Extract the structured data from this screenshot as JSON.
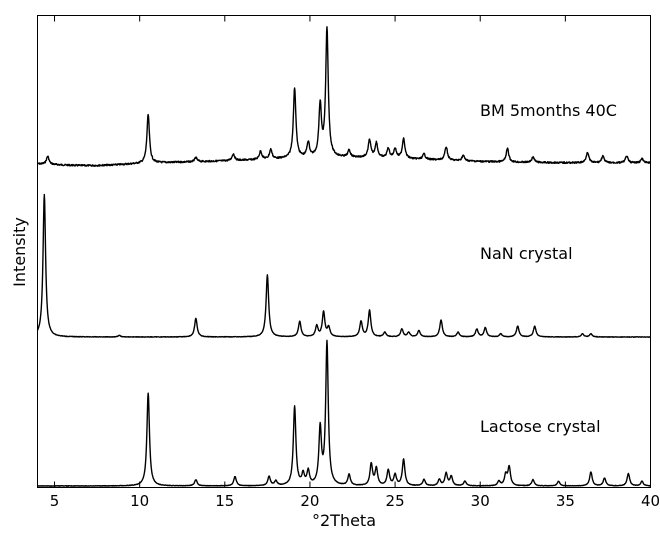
{
  "chart_data": {
    "type": "line",
    "title": "",
    "xlabel": "°2Theta",
    "ylabel": "Intensity",
    "xlim": [
      4,
      40
    ],
    "x_ticks": [
      5,
      10,
      15,
      20,
      25,
      30,
      35,
      40
    ],
    "y_ticks_shown": false,
    "grid": false,
    "legend": "none (series labelled inline)",
    "line_color": "#000000",
    "series": [
      {
        "name": "BM 5months 40C",
        "baseline_relative": 0.06,
        "peaks": [
          {
            "x": 4.6,
            "h": 0.06
          },
          {
            "x": 10.5,
            "h": 0.36
          },
          {
            "x": 13.3,
            "h": 0.03
          },
          {
            "x": 15.5,
            "h": 0.05
          },
          {
            "x": 17.1,
            "h": 0.06
          },
          {
            "x": 17.7,
            "h": 0.07
          },
          {
            "x": 19.1,
            "h": 0.52
          },
          {
            "x": 19.9,
            "h": 0.11
          },
          {
            "x": 20.6,
            "h": 0.38
          },
          {
            "x": 21.0,
            "h": 0.95
          },
          {
            "x": 22.3,
            "h": 0.05
          },
          {
            "x": 23.5,
            "h": 0.13
          },
          {
            "x": 23.9,
            "h": 0.11
          },
          {
            "x": 24.6,
            "h": 0.07
          },
          {
            "x": 25.0,
            "h": 0.07
          },
          {
            "x": 25.5,
            "h": 0.15
          },
          {
            "x": 26.7,
            "h": 0.04
          },
          {
            "x": 28.0,
            "h": 0.1
          },
          {
            "x": 29.0,
            "h": 0.04
          },
          {
            "x": 31.6,
            "h": 0.1
          },
          {
            "x": 33.1,
            "h": 0.04
          },
          {
            "x": 36.3,
            "h": 0.08
          },
          {
            "x": 37.2,
            "h": 0.05
          },
          {
            "x": 38.6,
            "h": 0.05
          },
          {
            "x": 39.5,
            "h": 0.03
          }
        ]
      },
      {
        "name": "NaN crystal",
        "baseline_relative": 0.0,
        "peaks": [
          {
            "x": 4.4,
            "h": 0.92
          },
          {
            "x": 8.8,
            "h": 0.01
          },
          {
            "x": 13.3,
            "h": 0.12
          },
          {
            "x": 17.5,
            "h": 0.4
          },
          {
            "x": 19.4,
            "h": 0.1
          },
          {
            "x": 20.4,
            "h": 0.07
          },
          {
            "x": 20.8,
            "h": 0.16
          },
          {
            "x": 21.1,
            "h": 0.06
          },
          {
            "x": 23.0,
            "h": 0.1
          },
          {
            "x": 23.5,
            "h": 0.17
          },
          {
            "x": 24.4,
            "h": 0.03
          },
          {
            "x": 25.4,
            "h": 0.05
          },
          {
            "x": 25.8,
            "h": 0.03
          },
          {
            "x": 26.4,
            "h": 0.04
          },
          {
            "x": 27.7,
            "h": 0.11
          },
          {
            "x": 28.7,
            "h": 0.03
          },
          {
            "x": 29.8,
            "h": 0.05
          },
          {
            "x": 30.3,
            "h": 0.06
          },
          {
            "x": 31.2,
            "h": 0.02
          },
          {
            "x": 32.2,
            "h": 0.07
          },
          {
            "x": 33.2,
            "h": 0.07
          },
          {
            "x": 36.0,
            "h": 0.02
          },
          {
            "x": 36.5,
            "h": 0.02
          }
        ]
      },
      {
        "name": "Lactose crystal",
        "baseline_relative": 0.0,
        "peaks": [
          {
            "x": 10.5,
            "h": 0.6
          },
          {
            "x": 13.3,
            "h": 0.04
          },
          {
            "x": 15.6,
            "h": 0.06
          },
          {
            "x": 17.6,
            "h": 0.06
          },
          {
            "x": 18.0,
            "h": 0.03
          },
          {
            "x": 19.1,
            "h": 0.51
          },
          {
            "x": 19.6,
            "h": 0.07
          },
          {
            "x": 19.9,
            "h": 0.09
          },
          {
            "x": 20.6,
            "h": 0.36
          },
          {
            "x": 21.0,
            "h": 0.92
          },
          {
            "x": 22.3,
            "h": 0.07
          },
          {
            "x": 23.6,
            "h": 0.14
          },
          {
            "x": 23.9,
            "h": 0.11
          },
          {
            "x": 24.6,
            "h": 0.1
          },
          {
            "x": 25.0,
            "h": 0.07
          },
          {
            "x": 25.5,
            "h": 0.17
          },
          {
            "x": 26.7,
            "h": 0.04
          },
          {
            "x": 27.6,
            "h": 0.04
          },
          {
            "x": 28.0,
            "h": 0.08
          },
          {
            "x": 28.3,
            "h": 0.06
          },
          {
            "x": 29.1,
            "h": 0.03
          },
          {
            "x": 31.1,
            "h": 0.03
          },
          {
            "x": 31.5,
            "h": 0.07
          },
          {
            "x": 31.7,
            "h": 0.12
          },
          {
            "x": 33.1,
            "h": 0.04
          },
          {
            "x": 34.6,
            "h": 0.03
          },
          {
            "x": 36.5,
            "h": 0.09
          },
          {
            "x": 37.3,
            "h": 0.05
          },
          {
            "x": 38.7,
            "h": 0.08
          },
          {
            "x": 39.5,
            "h": 0.03
          }
        ]
      }
    ]
  }
}
